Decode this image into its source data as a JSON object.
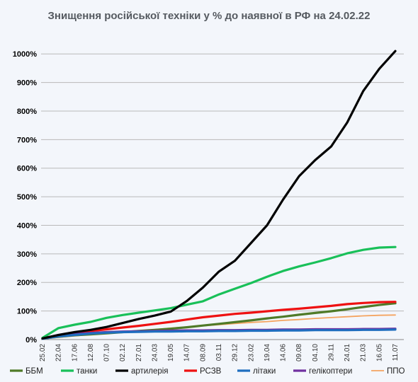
{
  "chart_data": {
    "type": "line",
    "title": "Знищення російської техніки у % до наявної в РФ на 24.02.22",
    "xlabel": "",
    "ylabel": "",
    "ylim": [
      0,
      1000
    ],
    "y_ticks": [
      0,
      100,
      200,
      300,
      400,
      500,
      600,
      700,
      800,
      900,
      1000
    ],
    "y_tick_labels": [
      "0%",
      "100%",
      "200%",
      "300%",
      "400%",
      "500%",
      "600%",
      "700%",
      "800%",
      "900%",
      "1000%"
    ],
    "x": [
      "25.02",
      "22.04",
      "17.06",
      "12.08",
      "07.10",
      "02.12",
      "27.01",
      "24.03",
      "19.05",
      "14.07",
      "08.09",
      "03.11",
      "29.12",
      "23.02",
      "19.04",
      "14.06",
      "09.08",
      "04.10",
      "29.11",
      "24.01",
      "21.03",
      "16.05",
      "11.07"
    ],
    "grid": true,
    "legend_position": "bottom",
    "series": [
      {
        "name": "ББМ",
        "color": "#4f7a28",
        "values": [
          4,
          10,
          15,
          18,
          22,
          26,
          30,
          34,
          38,
          43,
          49,
          55,
          61,
          67,
          74,
          80,
          87,
          93,
          99,
          106,
          114,
          121,
          127
        ]
      },
      {
        "name": "танки",
        "color": "#19c059",
        "values": [
          6,
          40,
          52,
          62,
          76,
          86,
          94,
          102,
          110,
          122,
          134,
          158,
          178,
          198,
          220,
          240,
          256,
          270,
          285,
          302,
          314,
          322,
          324
        ]
      },
      {
        "name": "артилерія",
        "color": "#000000",
        "values": [
          4,
          16,
          26,
          34,
          44,
          58,
          72,
          84,
          98,
          135,
          182,
          238,
          276,
          338,
          400,
          490,
          572,
          628,
          676,
          760,
          870,
          948,
          1010
        ]
      },
      {
        "name": "РСЗВ",
        "color": "#ee1111",
        "values": [
          5,
          14,
          22,
          30,
          36,
          42,
          48,
          55,
          62,
          70,
          78,
          84,
          90,
          94,
          99,
          104,
          108,
          113,
          118,
          124,
          128,
          131,
          132
        ]
      },
      {
        "name": "літаки",
        "color": "#1f6ebf",
        "values": [
          3,
          11,
          16,
          21,
          24,
          26,
          27,
          28,
          28,
          29,
          29,
          30,
          30,
          31,
          31,
          32,
          32,
          33,
          33,
          33,
          34,
          34,
          35
        ]
      },
      {
        "name": "гелікоптери",
        "color": "#7030a0",
        "values": [
          4,
          14,
          19,
          23,
          26,
          28,
          29,
          30,
          31,
          32,
          32,
          33,
          33,
          34,
          34,
          35,
          35,
          36,
          36,
          36,
          37,
          37,
          38
        ]
      },
      {
        "name": "ППО",
        "color": "#f4a460",
        "values": [
          2,
          8,
          13,
          18,
          22,
          26,
          30,
          35,
          40,
          44,
          48,
          52,
          56,
          60,
          63,
          67,
          70,
          74,
          77,
          80,
          83,
          85,
          86
        ]
      }
    ]
  }
}
